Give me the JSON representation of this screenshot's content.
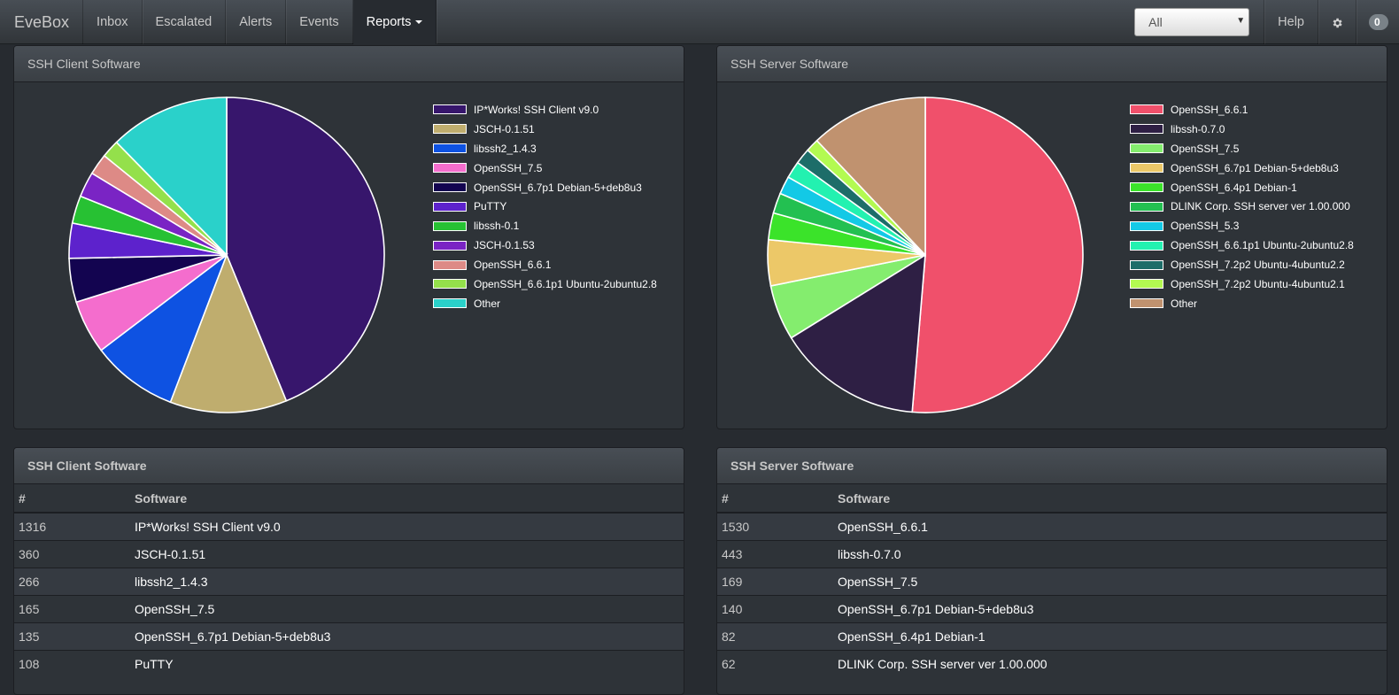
{
  "navbar": {
    "brand": "EveBox",
    "items": [
      {
        "label": "Inbox"
      },
      {
        "label": "Escalated"
      },
      {
        "label": "Alerts"
      },
      {
        "label": "Events"
      },
      {
        "label": "Reports"
      }
    ],
    "filter_value": "All",
    "help_label": "Help",
    "badge_count": "0"
  },
  "client_chart_panel": {
    "title": "SSH Client Software"
  },
  "server_chart_panel": {
    "title": "SSH Server Software"
  },
  "chart_data": [
    {
      "type": "pie",
      "title": "SSH Client Software",
      "labels": [
        "IP*Works! SSH Client v9.0",
        "JSCH-0.1.51",
        "libssh2_1.4.3",
        "OpenSSH_7.5",
        "OpenSSH_6.7p1 Debian-5+deb8u3",
        "PuTTY",
        "libssh-0.1",
        "JSCH-0.1.53",
        "OpenSSH_6.6.1",
        "OpenSSH_6.6.1p1 Ubuntu-2ubuntu2.8",
        "Other"
      ],
      "values": [
        1316,
        360,
        266,
        165,
        135,
        108,
        85,
        78,
        65,
        55,
        370
      ],
      "colors": [
        "#37166c",
        "#bfad6e",
        "#0e52e2",
        "#f46dcd",
        "#130450",
        "#5d22cc",
        "#27c133",
        "#7a24c4",
        "#dd8a86",
        "#94e04b",
        "#2ad1ca"
      ],
      "legend": "right"
    },
    {
      "type": "pie",
      "title": "SSH Server Software",
      "labels": [
        "OpenSSH_6.6.1",
        "libssh-0.7.0",
        "OpenSSH_7.5",
        "OpenSSH_6.7p1 Debian-5+deb8u3",
        "OpenSSH_6.4p1 Debian-1",
        "DLINK Corp. SSH server ver 1.00.000",
        "OpenSSH_5.3",
        "OpenSSH_6.6.1p1 Ubuntu-2ubuntu2.8",
        "OpenSSH_7.2p2 Ubuntu-4ubuntu2.2",
        "OpenSSH_7.2p2 Ubuntu-4ubuntu2.1",
        "Other"
      ],
      "values": [
        1530,
        443,
        169,
        140,
        82,
        62,
        55,
        52,
        48,
        40,
        360
      ],
      "colors": [
        "#f0506b",
        "#2e1f44",
        "#84ed6e",
        "#ecc868",
        "#3be32a",
        "#23c051",
        "#13c9e6",
        "#23f1b0",
        "#1d6d69",
        "#b3fa51",
        "#c0926f"
      ],
      "legend": "right"
    }
  ],
  "client_table": {
    "title": "SSH Client Software",
    "headers": [
      "#",
      "Software"
    ],
    "rows": [
      {
        "count": "1316",
        "software": "IP*Works! SSH Client v9.0"
      },
      {
        "count": "360",
        "software": "JSCH-0.1.51"
      },
      {
        "count": "266",
        "software": "libssh2_1.4.3"
      },
      {
        "count": "165",
        "software": "OpenSSH_7.5"
      },
      {
        "count": "135",
        "software": "OpenSSH_6.7p1 Debian-5+deb8u3"
      },
      {
        "count": "108",
        "software": "PuTTY"
      }
    ]
  },
  "server_table": {
    "title": "SSH Server Software",
    "headers": [
      "#",
      "Software"
    ],
    "rows": [
      {
        "count": "1530",
        "software": "OpenSSH_6.6.1"
      },
      {
        "count": "443",
        "software": "libssh-0.7.0"
      },
      {
        "count": "169",
        "software": "OpenSSH_7.5"
      },
      {
        "count": "140",
        "software": "OpenSSH_6.7p1 Debian-5+deb8u3"
      },
      {
        "count": "82",
        "software": "OpenSSH_6.4p1 Debian-1"
      },
      {
        "count": "62",
        "software": "DLINK Corp. SSH server ver 1.00.000"
      }
    ]
  },
  "icons": {
    "settings": "gear-icon",
    "filter_dropdown": "chevron-down-icon",
    "reports_menu": "caret-down-icon"
  }
}
